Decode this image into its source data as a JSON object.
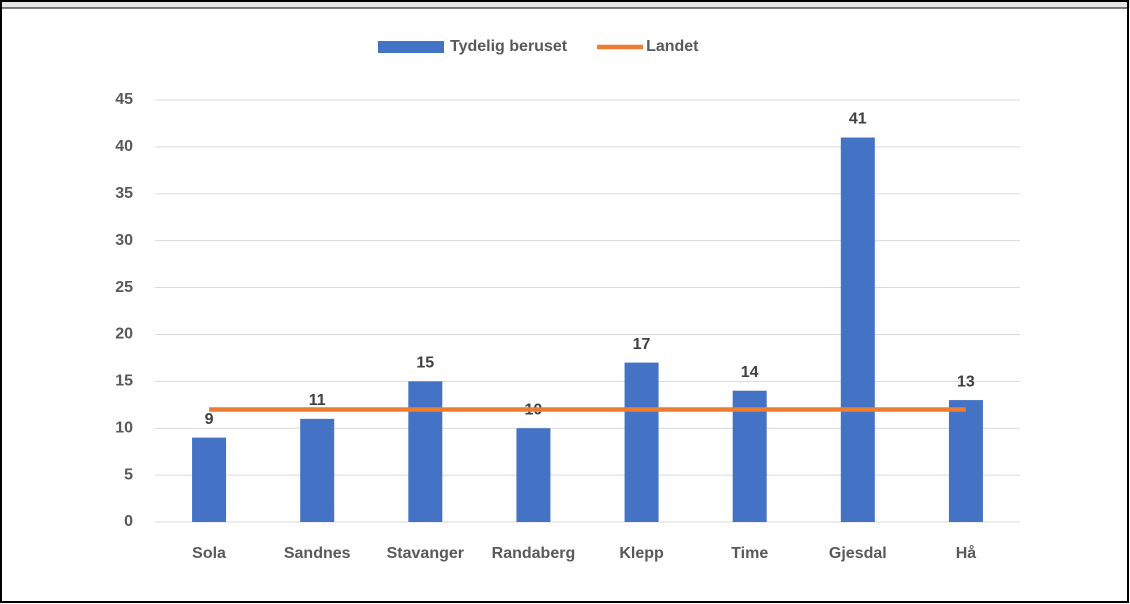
{
  "chart_data": {
    "type": "bar",
    "categories": [
      "Sola",
      "Sandnes",
      "Stavanger",
      "Randaberg",
      "Klepp",
      "Time",
      "Gjesdal",
      "Hå"
    ],
    "series": [
      {
        "name": "Tydelig beruset",
        "type": "bar",
        "color": "#4472c4",
        "values": [
          9,
          11,
          15,
          10,
          17,
          14,
          41,
          13
        ]
      },
      {
        "name": "Landet",
        "type": "line",
        "color": "#ed7d31",
        "values": [
          12,
          12,
          12,
          12,
          12,
          12,
          12,
          12
        ]
      }
    ],
    "ylim": [
      0,
      45
    ],
    "yticks": [
      0,
      5,
      10,
      15,
      20,
      25,
      30,
      35,
      40,
      45
    ],
    "grid": true,
    "legend": "top"
  }
}
